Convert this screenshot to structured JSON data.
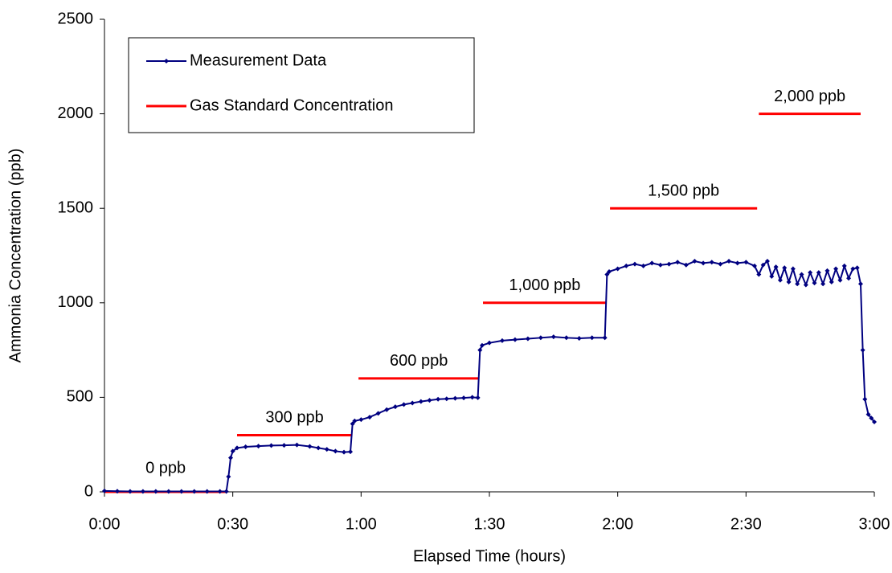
{
  "chart_data": {
    "type": "line",
    "x_label": "Elapsed Time (hours)",
    "y_label": "Ammonia Concentration (ppb)",
    "xlim": [
      0,
      180
    ],
    "xticks": [
      {
        "value": 0,
        "label": "0:00"
      },
      {
        "value": 30,
        "label": "0:30"
      },
      {
        "value": 60,
        "label": "1:00"
      },
      {
        "value": 90,
        "label": "1:30"
      },
      {
        "value": 120,
        "label": "2:00"
      },
      {
        "value": 150,
        "label": "2:30"
      },
      {
        "value": 180,
        "label": "3:00"
      }
    ],
    "ylim": [
      0,
      2500
    ],
    "yticks": [
      0,
      500,
      1000,
      1500,
      2000,
      2500
    ],
    "legend": "upper left",
    "series": [
      {
        "name": "Measurement Data",
        "color": "#000080",
        "x": [
          0,
          3,
          6,
          9,
          12,
          15,
          18,
          21,
          24,
          27,
          28.5,
          29,
          29.5,
          30,
          31,
          33,
          36,
          39,
          42,
          45,
          48,
          50,
          52,
          54,
          56,
          57.5,
          58,
          58.5,
          60,
          62,
          64,
          66,
          68,
          70,
          72,
          74,
          76,
          78,
          80,
          82,
          84,
          86,
          87.3,
          87.8,
          88.3,
          90,
          93,
          96,
          99,
          102,
          105,
          108,
          111,
          114,
          117,
          117.5,
          118,
          120,
          122,
          124,
          126,
          128,
          130,
          132,
          134,
          136,
          138,
          140,
          142,
          144,
          146,
          148,
          150,
          152,
          153,
          154,
          155,
          156,
          157,
          158,
          159,
          160,
          161,
          162,
          163,
          164,
          165,
          166,
          167,
          168,
          169,
          170,
          171,
          172,
          173,
          174,
          175,
          176,
          176.8,
          177.3,
          177.8,
          178.6,
          179.3,
          180
        ],
        "values": [
          5,
          3,
          2,
          2,
          2,
          2,
          2,
          2,
          2,
          2,
          2,
          80,
          180,
          215,
          232,
          238,
          242,
          245,
          246,
          248,
          240,
          232,
          225,
          215,
          210,
          212,
          360,
          375,
          382,
          395,
          415,
          435,
          450,
          462,
          470,
          478,
          484,
          490,
          492,
          495,
          497,
          500,
          498,
          750,
          775,
          788,
          800,
          805,
          810,
          815,
          820,
          815,
          812,
          815,
          815,
          1150,
          1165,
          1180,
          1195,
          1205,
          1195,
          1210,
          1200,
          1205,
          1215,
          1200,
          1220,
          1210,
          1215,
          1205,
          1220,
          1210,
          1215,
          1195,
          1150,
          1200,
          1220,
          1140,
          1190,
          1120,
          1185,
          1110,
          1180,
          1100,
          1150,
          1095,
          1160,
          1105,
          1160,
          1100,
          1170,
          1110,
          1180,
          1120,
          1195,
          1130,
          1180,
          1185,
          1100,
          750,
          490,
          410,
          390,
          370
        ]
      }
    ],
    "standards": {
      "name": "Gas Standard Concentration",
      "color": "#ff0000",
      "segments": [
        {
          "x": [
            0,
            28.6
          ],
          "value": 0,
          "label": "0 ppb"
        },
        {
          "x": [
            31,
            57.9
          ],
          "value": 300,
          "label": "300 ppb"
        },
        {
          "x": [
            59.4,
            87.6
          ],
          "value": 600,
          "label": "600 ppb"
        },
        {
          "x": [
            88.5,
            117.4
          ],
          "value": 1000,
          "label": "1,000 ppb"
        },
        {
          "x": [
            118.2,
            152.6
          ],
          "value": 1500,
          "label": "1,500 ppb"
        },
        {
          "x": [
            153,
            176.8
          ],
          "value": 2000,
          "label": "2,000 ppb"
        }
      ]
    }
  }
}
